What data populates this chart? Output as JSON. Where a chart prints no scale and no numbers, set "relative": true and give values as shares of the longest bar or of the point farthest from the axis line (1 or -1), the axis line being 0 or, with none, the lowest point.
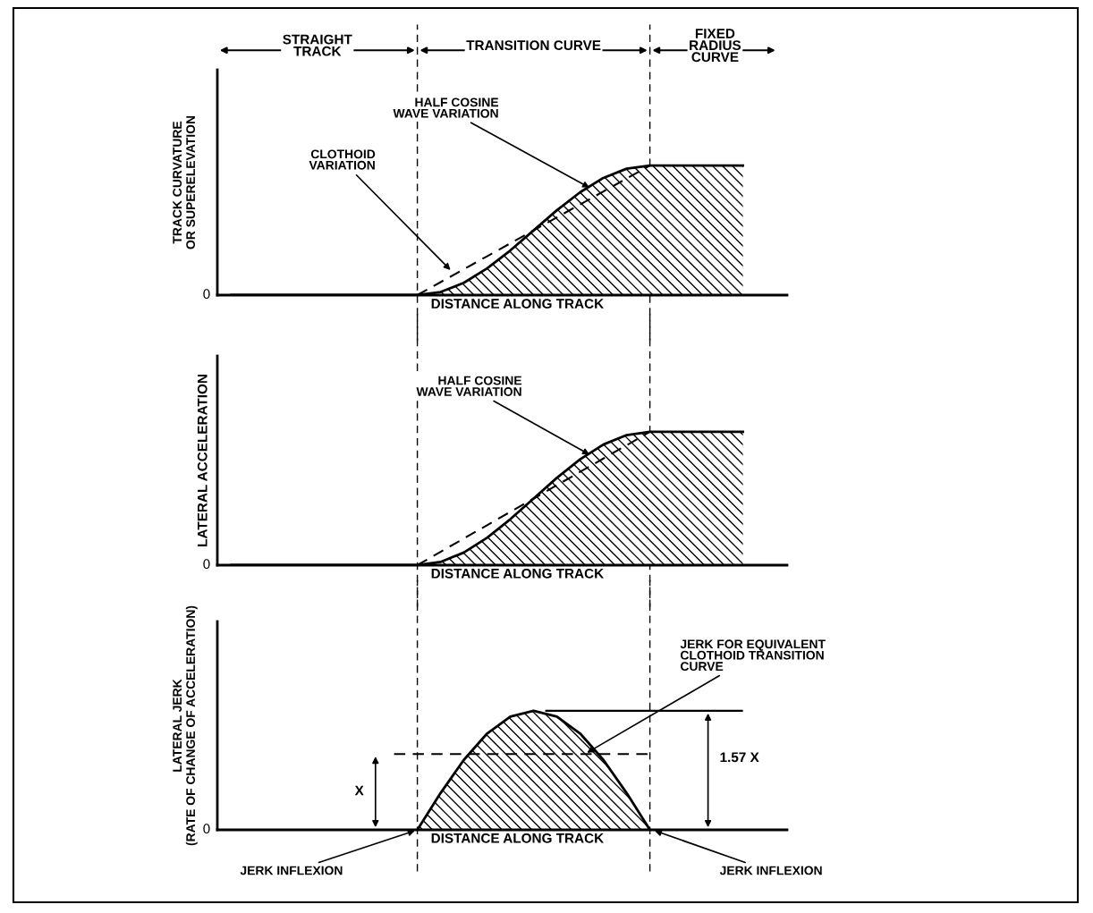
{
  "chart_data": [
    {
      "type": "area",
      "relative": true,
      "ylabel": "TRACK CURVATURE\nOR SUPERELEVATION",
      "xlabel": "DISTANCE ALONG TRACK",
      "categories": [
        null,
        null,
        null,
        null,
        null,
        null,
        null,
        null,
        null,
        null,
        null,
        null,
        null,
        null,
        null,
        null,
        null,
        null,
        null,
        null,
        null,
        null,
        null
      ],
      "series": [
        {
          "name": "HALF COSINE\nWAVE VARIATION",
          "color": "#000000",
          "values": [
            0,
            0,
            0,
            0,
            0,
            0,
            0,
            0,
            0,
            0.024,
            0.095,
            0.206,
            0.345,
            0.5,
            0.655,
            0.794,
            0.905,
            0.976,
            1,
            1,
            1,
            1,
            1
          ]
        },
        {
          "name": "CLOTHOID\nVARIATION",
          "type": "line",
          "color": "#000000",
          "line_style": "dashed",
          "values": [
            null,
            null,
            null,
            null,
            null,
            null,
            null,
            null,
            0,
            0.1,
            0.2,
            0.3,
            0.4,
            0.5,
            0.6,
            0.7,
            0.8,
            0.9,
            1,
            null,
            null,
            null,
            null
          ]
        }
      ],
      "annotations": [
        "0",
        "STRAIGHT\nTRACK",
        "TRANSITION CURVE",
        "FIXED\nRADIUS\nCURVE"
      ]
    },
    {
      "type": "area",
      "relative": true,
      "ylabel": "LATERAL ACCELERATION",
      "xlabel": "DISTANCE ALONG TRACK",
      "categories": [
        null,
        null,
        null,
        null,
        null,
        null,
        null,
        null,
        null,
        null,
        null,
        null,
        null,
        null,
        null,
        null,
        null,
        null,
        null,
        null,
        null,
        null,
        null
      ],
      "series": [
        {
          "name": "HALF COSINE\nWAVE VARIATION",
          "color": "#000000",
          "values": [
            0,
            0,
            0,
            0,
            0,
            0,
            0,
            0,
            0,
            0.024,
            0.095,
            0.206,
            0.345,
            0.5,
            0.655,
            0.794,
            0.905,
            0.976,
            1,
            1,
            1,
            1,
            1
          ]
        },
        {
          "type": "line",
          "color": "#000000",
          "line_style": "dashed",
          "values": [
            null,
            null,
            null,
            null,
            null,
            null,
            null,
            null,
            0,
            0.1,
            0.2,
            0.3,
            0.4,
            0.5,
            0.6,
            0.7,
            0.8,
            0.9,
            1,
            null,
            null,
            null,
            null
          ]
        }
      ],
      "annotations": [
        "0"
      ]
    },
    {
      "type": "area",
      "relative": true,
      "ylabel": "LATERAL JERK\n(RATE OF CHANGE OF ACCELERATION)",
      "xlabel": "DISTANCE ALONG TRACK",
      "categories": [
        null,
        null,
        null,
        null,
        null,
        null,
        null,
        null,
        null,
        null,
        null,
        null,
        null,
        null,
        null,
        null,
        null,
        null,
        null,
        null,
        null,
        null,
        null
      ],
      "series": [
        {
          "color": "#000000",
          "values": [
            null,
            null,
            null,
            null,
            null,
            null,
            null,
            null,
            0,
            0.309,
            0.588,
            0.809,
            0.951,
            1,
            0.951,
            0.809,
            0.588,
            0.309,
            0,
            null,
            null,
            null,
            null
          ]
        },
        {
          "name": "JERK FOR EQUIVALENT\nCLOTHOID TRANSITION\nCURVE",
          "type": "line",
          "color": "#000000",
          "line_style": "dashed",
          "values": [
            null,
            null,
            null,
            null,
            null,
            null,
            null,
            0.637,
            0.637,
            0.637,
            0.637,
            0.637,
            0.637,
            0.637,
            0.637,
            0.637,
            0.637,
            0.637,
            0.637,
            null,
            null,
            null,
            null
          ]
        }
      ],
      "annotations": [
        "0",
        "X",
        "1.57 X",
        "JERK INFLEXION",
        "JERK INFLEXION"
      ]
    }
  ]
}
